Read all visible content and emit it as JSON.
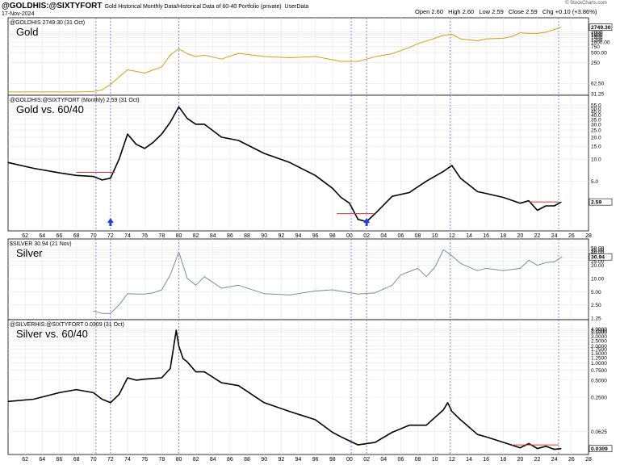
{
  "header": {
    "symbol": "@GOLDHIS:@SIXTYFORT",
    "description": "Gold Historical Monthly Data/Historical Data of 60-40 Portfolio (private)",
    "source": "UserData",
    "date": "17-Nov-2024",
    "open": "Open 2.60",
    "high": "High 2.60",
    "low": "Low 2.59",
    "close": "Close 2.59",
    "chg": "Chg +0.10 (+3.86%)",
    "brand": "© StockCharts.com"
  },
  "colors": {
    "gold_line": "#d4a017",
    "black_line": "#000000",
    "silver_line": "#7f8c95",
    "vline": "#6c6cf0",
    "hline": "#e03030",
    "arrow": "#1f3fe0",
    "grid": "#e6e6e6"
  },
  "chart_data": [
    {
      "type": "line",
      "panel_label": "Gold",
      "info": "@GOLDHIS 2749.30 (31 Oct)",
      "last_value_label": "2749.30",
      "y_scale": "log",
      "ylim": [
        31.25,
        3000
      ],
      "y_ticks": [
        "2000",
        "1800",
        "1600",
        "1400",
        "1200",
        "1000.00",
        "750",
        "500.00",
        "250",
        "62.50",
        "31.25"
      ],
      "x": [
        1960,
        1968,
        1970,
        1971,
        1972,
        1973,
        1974,
        1975,
        1976,
        1978,
        1979,
        1980,
        1981,
        1982,
        1983,
        1985,
        1987,
        1990,
        1993,
        1996,
        1999,
        2001,
        2003,
        2005,
        2007,
        2008,
        2010,
        2011,
        2012,
        2013,
        2015,
        2016,
        2018,
        2019,
        2020,
        2021,
        2022,
        2023,
        2024,
        2024.8
      ],
      "values": [
        35,
        35,
        36,
        40,
        58,
        97,
        155,
        140,
        125,
        190,
        420,
        640,
        460,
        380,
        420,
        320,
        470,
        380,
        350,
        380,
        275,
        275,
        375,
        460,
        700,
        900,
        1300,
        1600,
        1700,
        1250,
        1100,
        1250,
        1300,
        1450,
        1880,
        1800,
        1800,
        1950,
        2350,
        2749
      ]
    },
    {
      "type": "line",
      "panel_label": "Gold vs. 60/40",
      "info": "@GOLDHIS:@SIXTYFORT (Monthly) 2.59 (31 Oct)",
      "last_value_label": "2.59",
      "y_scale": "log",
      "ylim": [
        1.1,
        58
      ],
      "y_ticks": [
        "55.0",
        "50.0",
        "45.0",
        "40.0",
        "35.0",
        "30.0",
        "25.0",
        "20.0",
        "15.0",
        "10.0",
        "5.0"
      ],
      "x": [
        1960,
        1963,
        1966,
        1968,
        1970,
        1971,
        1972,
        1973,
        1974,
        1975,
        1976,
        1977,
        1978,
        1979,
        1980,
        1981,
        1982,
        1983,
        1985,
        1987,
        1990,
        1993,
        1996,
        1998,
        1999,
        2000,
        2001,
        2002,
        2003,
        2005,
        2007,
        2009,
        2011,
        2012,
        2013,
        2015,
        2016,
        2018,
        2020,
        2021,
        2022,
        2023,
        2024,
        2024.8
      ],
      "values": [
        9.0,
        7.5,
        6.5,
        6.0,
        5.8,
        5.2,
        5.5,
        10,
        22,
        16,
        14,
        17,
        22,
        32,
        52,
        36,
        30,
        30,
        20,
        18,
        12,
        9,
        6.0,
        4.0,
        3.0,
        2.5,
        1.5,
        1.4,
        1.8,
        3.1,
        3.5,
        5.0,
        6.8,
        8.2,
        5.5,
        3.6,
        3.4,
        3.0,
        2.5,
        2.7,
        2.0,
        2.3,
        2.3,
        2.6
      ],
      "hlines": [
        {
          "x": [
            1968,
            1972.5
          ],
          "value": 6.6
        },
        {
          "x": [
            1998.5,
            2003
          ],
          "value": 1.8
        },
        {
          "x": [
            2021,
            2024.5
          ],
          "value": 2.6
        }
      ],
      "arrows": [
        1972,
        2002
      ]
    },
    {
      "type": "line",
      "panel_label": "Silver",
      "info": "$SILVER 30.94 (21 Nov)",
      "last_value_label": "30.94",
      "y_scale": "log",
      "ylim": [
        1.25,
        52
      ],
      "y_ticks": [
        "50.00",
        "45.00",
        "40.00",
        "35.00",
        "30.00",
        "25.00",
        "20.00",
        "10.00",
        "5.00",
        "2.50",
        "1.25"
      ],
      "x": [
        1970,
        1971,
        1972,
        1973,
        1974,
        1975,
        1976,
        1977,
        1978,
        1979,
        1980,
        1981,
        1982,
        1983,
        1985,
        1987,
        1990,
        1993,
        1996,
        1998,
        2001,
        2003,
        2005,
        2006,
        2008,
        2009,
        2010,
        2011,
        2012,
        2013,
        2015,
        2016,
        2018,
        2020,
        2021,
        2022,
        2023,
        2024,
        2024.9
      ],
      "values": [
        1.8,
        1.6,
        1.6,
        2.5,
        4.5,
        4.4,
        4.4,
        4.7,
        5.5,
        12,
        40,
        10,
        7.0,
        11,
        6.0,
        7.0,
        4.5,
        4.2,
        5.2,
        5.5,
        4.4,
        4.7,
        7.0,
        12,
        17,
        11,
        18,
        45,
        33,
        22,
        15,
        17,
        15,
        17,
        26,
        20,
        23,
        24,
        31
      ]
    },
    {
      "type": "line",
      "panel_label": "Silver vs. 60/40",
      "info": "@SILVERHIS:@SIXTYFORT 0.0309 (31 Oct)",
      "last_value_label": "0.0309",
      "y_scale": "log",
      "ylim": [
        0.026,
        4.2
      ],
      "y_ticks": [
        "4.0000",
        "3.7500",
        "3.5000",
        "3.0000",
        "2.5000",
        "2.0000",
        "1.7500",
        "1.5000",
        "1.2500",
        "1.0000",
        "0.7500",
        "0.5000",
        "0.2500",
        "0.0625"
      ],
      "x": [
        1960,
        1963,
        1966,
        1968,
        1970,
        1971,
        1972,
        1973,
        1974,
        1975,
        1976,
        1978,
        1979,
        1979.7,
        1980,
        1980.5,
        1981,
        1982,
        1983,
        1985,
        1987,
        1990,
        1993,
        1996,
        1998,
        1999,
        2001,
        2003,
        2005,
        2007,
        2009,
        2011,
        2011.5,
        2012,
        2013,
        2015,
        2016,
        2018,
        2020,
        2021,
        2022,
        2023,
        2024,
        2024.8
      ],
      "values": [
        0.21,
        0.23,
        0.3,
        0.34,
        0.3,
        0.23,
        0.2,
        0.28,
        0.55,
        0.5,
        0.52,
        0.55,
        0.8,
        3.8,
        2.0,
        1.2,
        1.05,
        0.7,
        0.7,
        0.45,
        0.4,
        0.2,
        0.14,
        0.1,
        0.06,
        0.05,
        0.036,
        0.04,
        0.06,
        0.08,
        0.08,
        0.15,
        0.2,
        0.14,
        0.1,
        0.055,
        0.05,
        0.04,
        0.032,
        0.038,
        0.031,
        0.034,
        0.03,
        0.0309
      ],
      "hlines": [
        {
          "x": [
            2019,
            2024.5
          ],
          "value": 0.036
        }
      ]
    }
  ],
  "x_axis": {
    "xlim": [
      1960,
      2028
    ],
    "ticks": [
      "62",
      "64",
      "66",
      "68",
      "70",
      "72",
      "74",
      "76",
      "78",
      "80",
      "82",
      "84",
      "86",
      "88",
      "90",
      "92",
      "94",
      "96",
      "98",
      "00",
      "02",
      "04",
      "06",
      "08",
      "10",
      "12",
      "14",
      "16",
      "18",
      "20",
      "22",
      "24",
      "26",
      "28"
    ],
    "vertical_markers": [
      1970.3,
      1972,
      1980,
      2000.2,
      2002,
      2011.8,
      2024.5
    ]
  }
}
